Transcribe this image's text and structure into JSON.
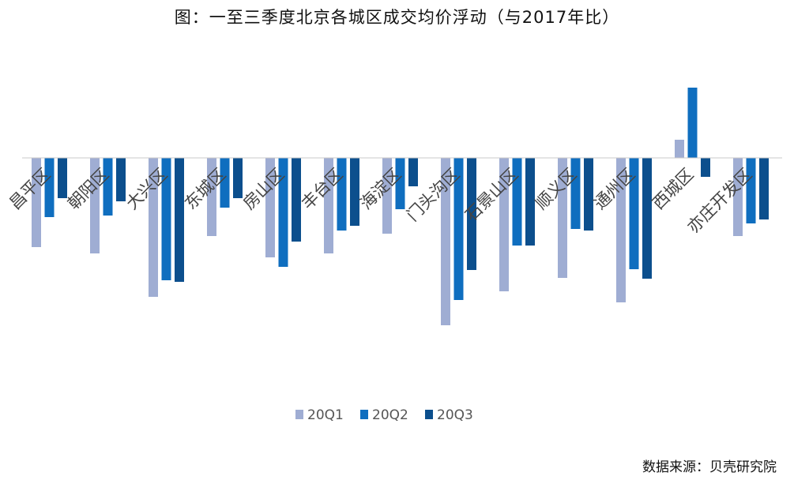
{
  "title": "图：一至三季度北京各城区成交均价浮动（与2017年比）",
  "source": "数据来源：贝壳研究院",
  "chart_data": {
    "type": "bar",
    "title": "图：一至三季度北京各城区成交均价浮动（与2017年比）",
    "categories": [
      "昌平区",
      "朝阳区",
      "大兴区",
      "东城区",
      "房山区",
      "丰台区",
      "海淀区",
      "门头沟区",
      "石景山区",
      "顺义区",
      "通州区",
      "西城区",
      "亦庄开发区"
    ],
    "series": [
      {
        "name": "20Q1",
        "color": "#9fadd3",
        "values": [
          -113,
          -121,
          -176,
          -99,
          -126,
          -121,
          -96,
          -212,
          -169,
          -152,
          -183,
          23,
          -99
        ]
      },
      {
        "name": "20Q2",
        "color": "#0f6ebf",
        "values": [
          -75,
          -73,
          -155,
          -63,
          -138,
          -92,
          -65,
          -180,
          -111,
          -90,
          -141,
          89,
          -83
        ]
      },
      {
        "name": "20Q3",
        "color": "#0c4f8d",
        "values": [
          -51,
          -55,
          -157,
          -51,
          -106,
          -86,
          -36,
          -142,
          -111,
          -92,
          -153,
          -24,
          -78
        ]
      }
    ],
    "ylim": [
      -230,
      110
    ],
    "grid": false,
    "legend_position": "bottom"
  }
}
